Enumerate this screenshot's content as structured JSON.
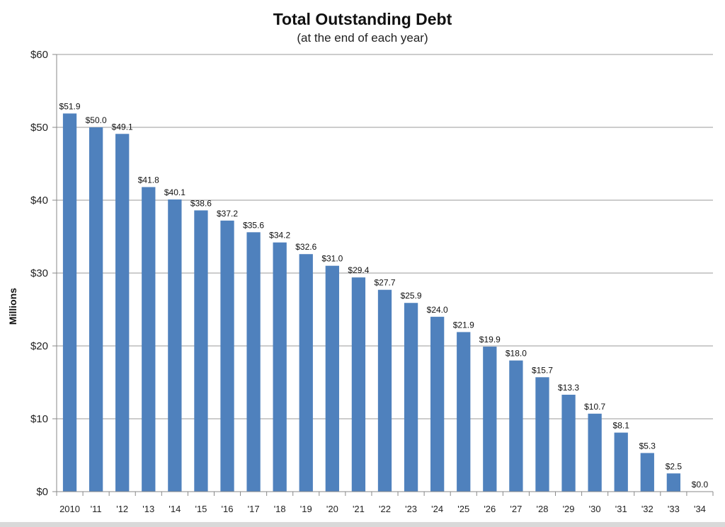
{
  "chart_data": {
    "type": "bar",
    "title": "Total Outstanding Debt",
    "subtitle": "(at the end of each year)",
    "xlabel": "",
    "ylabel": "Millions",
    "ylim": [
      0,
      60
    ],
    "yticks": [
      0,
      10,
      20,
      30,
      40,
      50,
      60
    ],
    "ytick_labels": [
      "$0",
      "$10",
      "$20",
      "$30",
      "$40",
      "$50",
      "$60"
    ],
    "grid": true,
    "legend": "none",
    "bar_color": "#4f81bd",
    "categories": [
      "2010",
      "'11",
      "'12",
      "'13",
      "'14",
      "'15",
      "'16",
      "'17",
      "'18",
      "'19",
      "'20",
      "'21",
      "'22",
      "'23",
      "'24",
      "'25",
      "'26",
      "'27",
      "'28",
      "'29",
      "'30",
      "'31",
      "'32",
      "'33",
      "'34"
    ],
    "values": [
      51.9,
      50.0,
      49.1,
      41.8,
      40.1,
      38.6,
      37.2,
      35.6,
      34.2,
      32.6,
      31.0,
      29.4,
      27.7,
      25.9,
      24.0,
      21.9,
      19.9,
      18.0,
      15.7,
      13.3,
      10.7,
      8.1,
      5.3,
      2.5,
      0.0
    ],
    "data_labels": [
      "$51.9",
      "$50.0",
      "$49.1",
      "$41.8",
      "$40.1",
      "$38.6",
      "$37.2",
      "$35.6",
      "$34.2",
      "$32.6",
      "$31.0",
      "$29.4",
      "$27.7",
      "$25.9",
      "$24.0",
      "$21.9",
      "$19.9",
      "$18.0",
      "$15.7",
      "$13.3",
      "$10.7",
      "$8.1",
      "$5.3",
      "$2.5",
      "$0.0"
    ]
  }
}
